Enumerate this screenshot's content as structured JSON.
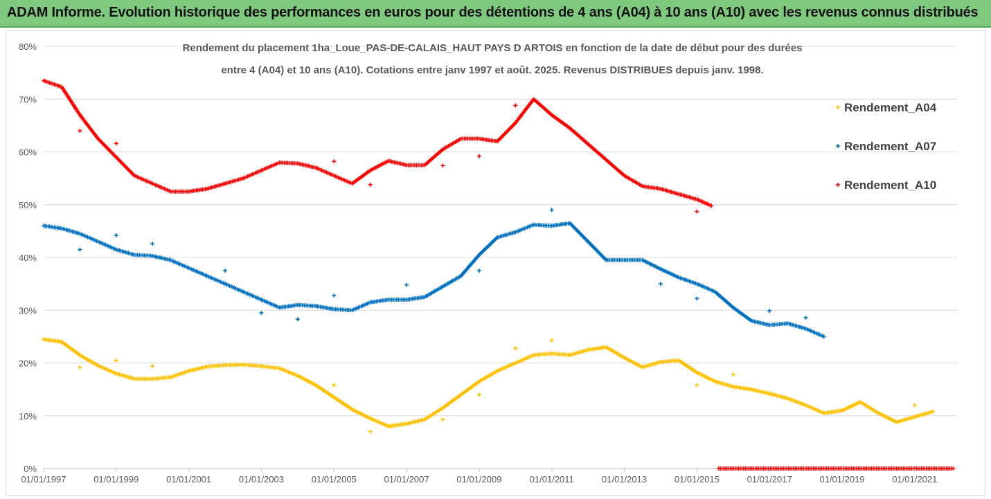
{
  "banner": {
    "title": "ADAM Informe. Evolution historique des performances en euros pour des détentions de 4 ans (A04) à 10 ans (A10) avec les revenus connus distribués"
  },
  "chart_data": {
    "type": "scatter",
    "title_lines": [
      "Rendement du placement 1ha_Loue_PAS-DE-CALAIS_HAUT PAYS D ARTOIS en fonction de la date de début pour des durées",
      "entre 4 (A04) et 10 ans (A10). Cotations entre janv 1997 et août. 2025. Revenus DISTRIBUES depuis janv. 1998."
    ],
    "xlabel": "",
    "ylabel": "",
    "x_ticks": [
      "01/01/1997",
      "01/01/1999",
      "01/01/2001",
      "01/01/2003",
      "01/01/2005",
      "01/01/2007",
      "01/01/2009",
      "01/01/2011",
      "01/01/2013",
      "01/01/2015",
      "01/01/2017",
      "01/01/2019",
      "01/01/2021"
    ],
    "y_ticks": [
      "0%",
      "10%",
      "20%",
      "30%",
      "40%",
      "50%",
      "60%",
      "70%",
      "80%"
    ],
    "xlim": [
      "01/01/1997",
      "01/03/2022"
    ],
    "ylim": [
      0,
      80
    ],
    "grid": "horizontal",
    "legend_position": "right",
    "series": [
      {
        "name": "Rendement_A04",
        "color": "#ffc000",
        "x": [
          1997.0,
          1997.5,
          1998.0,
          1998.5,
          1999.0,
          1999.5,
          2000.0,
          2000.5,
          2001.0,
          2001.5,
          2002.0,
          2002.5,
          2003.0,
          2003.5,
          2004.0,
          2004.5,
          2005.0,
          2005.5,
          2006.0,
          2006.5,
          2007.0,
          2007.5,
          2008.0,
          2008.5,
          2009.0,
          2009.5,
          2010.0,
          2010.5,
          2011.0,
          2011.5,
          2012.0,
          2012.5,
          2013.0,
          2013.5,
          2014.0,
          2014.5,
          2015.0,
          2015.5,
          2016.0,
          2016.5,
          2017.0,
          2017.5,
          2018.0,
          2018.5,
          2019.0,
          2019.5,
          2020.0,
          2020.5,
          2021.0,
          2021.5
        ],
        "y": [
          24.5,
          24.0,
          21.5,
          19.5,
          18.0,
          17.0,
          17.0,
          17.3,
          18.5,
          19.3,
          19.6,
          19.7,
          19.4,
          19.0,
          17.6,
          15.8,
          13.5,
          11.2,
          9.5,
          8.0,
          8.5,
          9.3,
          11.5,
          14.0,
          16.5,
          18.5,
          20.0,
          21.5,
          21.8,
          21.5,
          22.5,
          23.0,
          21.0,
          19.2,
          20.2,
          20.5,
          18.2,
          16.5,
          15.5,
          15.0,
          14.2,
          13.3,
          12.0,
          10.5,
          11.0,
          12.6,
          10.5,
          8.8,
          9.8,
          10.8
        ]
      },
      {
        "name": "Rendement_A07",
        "color": "#0070c0",
        "x": [
          1997.0,
          1997.5,
          1998.0,
          1998.5,
          1999.0,
          1999.5,
          2000.0,
          2000.5,
          2001.0,
          2001.5,
          2002.0,
          2002.5,
          2003.0,
          2003.5,
          2004.0,
          2004.5,
          2005.0,
          2005.5,
          2006.0,
          2006.5,
          2007.0,
          2007.5,
          2008.0,
          2008.5,
          2009.0,
          2009.5,
          2010.0,
          2010.5,
          2011.0,
          2011.5,
          2012.0,
          2012.5,
          2013.0,
          2013.5,
          2014.0,
          2014.5,
          2015.0,
          2015.5,
          2016.0,
          2016.5,
          2017.0,
          2017.5,
          2018.0,
          2018.5
        ],
        "y": [
          46.0,
          45.5,
          44.5,
          43.0,
          41.5,
          40.5,
          40.3,
          39.5,
          38.0,
          36.5,
          35.0,
          33.5,
          32.0,
          30.5,
          31.0,
          30.8,
          30.2,
          30.0,
          31.5,
          32.0,
          32.0,
          32.5,
          34.5,
          36.5,
          40.5,
          43.8,
          44.8,
          46.2,
          46.0,
          46.5,
          43.0,
          39.5,
          39.5,
          39.5,
          37.8,
          36.2,
          35.0,
          33.5,
          30.5,
          28.0,
          27.2,
          27.5,
          26.5,
          25.0
        ]
      },
      {
        "name": "Rendement_A10",
        "color": "#ff0000",
        "x": [
          1997.0,
          1997.5,
          1998.0,
          1998.5,
          1999.0,
          1999.5,
          2000.0,
          2000.5,
          2001.0,
          2001.5,
          2002.0,
          2002.5,
          2003.0,
          2003.5,
          2004.0,
          2004.5,
          2005.0,
          2005.5,
          2006.0,
          2006.5,
          2007.0,
          2007.5,
          2008.0,
          2008.5,
          2009.0,
          2009.5,
          2010.0,
          2010.5,
          2011.0,
          2011.5,
          2012.0,
          2012.5,
          2013.0,
          2013.5,
          2014.0,
          2014.5,
          2015.0,
          2015.4
        ],
        "y": [
          73.5,
          72.3,
          67.0,
          62.5,
          59.0,
          55.5,
          54.0,
          52.5,
          52.5,
          53.0,
          54.0,
          55.0,
          56.5,
          58.0,
          57.8,
          57.0,
          55.5,
          54.0,
          56.5,
          58.3,
          57.5,
          57.5,
          60.5,
          62.5,
          62.5,
          62.0,
          65.5,
          70.0,
          67.0,
          64.5,
          61.5,
          58.5,
          55.5,
          53.5,
          53.0,
          52.0,
          51.0,
          49.8
        ],
        "zero_segment": {
          "x_start": 2015.6,
          "x_end": 2022.1,
          "y": 0
        }
      }
    ],
    "outliers": [
      {
        "series": "Rendement_A04",
        "points": [
          [
            1998.0,
            19.2
          ],
          [
            1999.0,
            20.5
          ],
          [
            2000.0,
            19.4
          ],
          [
            2005.0,
            15.8
          ],
          [
            2006.0,
            7.0
          ],
          [
            2008.0,
            9.3
          ],
          [
            2009.0,
            14.0
          ],
          [
            2010.0,
            22.8
          ],
          [
            2011.0,
            24.3
          ],
          [
            2015.0,
            15.8
          ],
          [
            2016.0,
            17.8
          ],
          [
            2021.0,
            12.0
          ]
        ]
      },
      {
        "series": "Rendement_A07",
        "points": [
          [
            1998.0,
            41.5
          ],
          [
            1999.0,
            44.2
          ],
          [
            2000.0,
            42.6
          ],
          [
            2002.0,
            37.5
          ],
          [
            2003.0,
            29.5
          ],
          [
            2004.0,
            28.3
          ],
          [
            2005.0,
            32.8
          ],
          [
            2007.0,
            34.8
          ],
          [
            2009.0,
            37.5
          ],
          [
            2011.0,
            49.0
          ],
          [
            2014.0,
            35.0
          ],
          [
            2015.0,
            32.2
          ],
          [
            2017.0,
            29.9
          ],
          [
            2018.0,
            28.6
          ]
        ]
      },
      {
        "series": "Rendement_A10",
        "points": [
          [
            1998.0,
            64.0
          ],
          [
            1999.0,
            61.6
          ],
          [
            2005.0,
            58.2
          ],
          [
            2006.0,
            53.8
          ],
          [
            2008.0,
            57.4
          ],
          [
            2009.0,
            59.2
          ],
          [
            2010.0,
            68.8
          ],
          [
            2015.0,
            48.7
          ]
        ]
      }
    ]
  }
}
